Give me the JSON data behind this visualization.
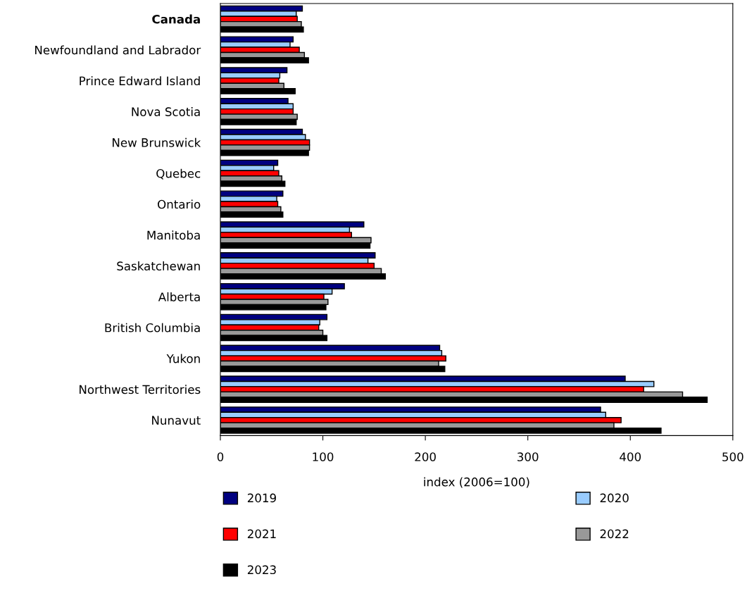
{
  "chart_data": {
    "type": "bar",
    "orientation": "horizontal",
    "xlabel": "index (2006=100)",
    "categories": [
      "Canada",
      "Newfoundland and Labrador",
      "Prince Edward Island",
      "Nova Scotia",
      "New Brunswick",
      "Quebec",
      "Ontario",
      "Manitoba",
      "Saskatchewan",
      "Alberta",
      "British Columbia",
      "Yukon",
      "Northwest Territories",
      "Nunavut"
    ],
    "series": [
      {
        "name": "2019",
        "color": "#000080",
        "values": [
          80,
          71,
          65,
          66,
          80,
          56,
          61,
          140,
          151,
          121,
          104,
          214,
          395,
          371
        ]
      },
      {
        "name": "2020",
        "color": "#99ccff",
        "values": [
          74,
          68,
          58,
          71,
          83,
          52,
          55,
          126,
          144,
          109,
          97,
          216,
          423,
          376
        ]
      },
      {
        "name": "2021",
        "color": "#ff0000",
        "values": [
          75,
          77,
          57,
          71,
          87,
          57,
          56,
          128,
          150,
          101,
          96,
          220,
          413,
          391
        ]
      },
      {
        "name": "2022",
        "color": "#999999",
        "values": [
          79,
          82,
          62,
          75,
          87,
          60,
          59,
          147,
          157,
          105,
          100,
          213,
          451,
          384
        ]
      },
      {
        "name": "2023",
        "color": "#000000",
        "values": [
          81,
          86,
          73,
          74,
          86,
          63,
          61,
          146,
          161,
          103,
          104,
          219,
          475,
          430
        ]
      }
    ],
    "xlim": [
      0,
      500
    ],
    "xticks": [
      0,
      100,
      200,
      300,
      400,
      500
    ],
    "grid": false,
    "legend": "bottom"
  }
}
